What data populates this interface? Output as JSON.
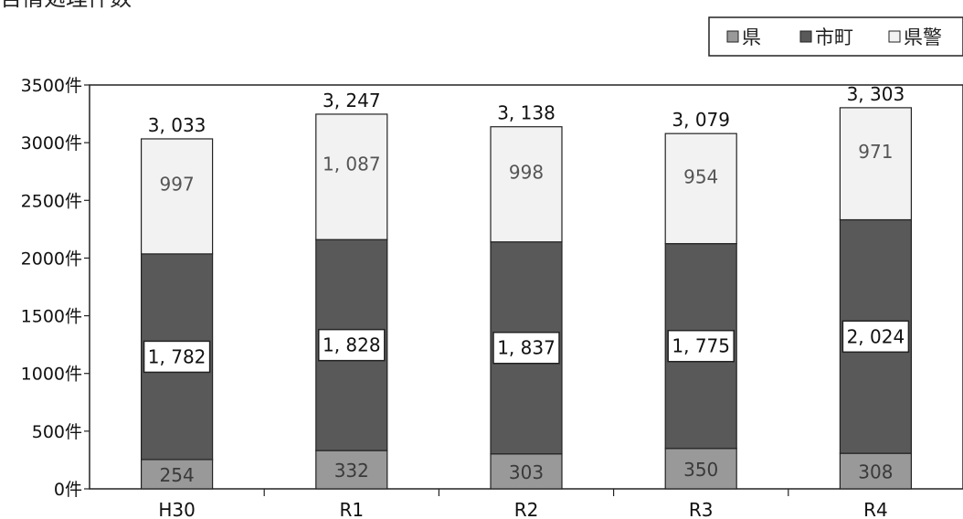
{
  "chart_data": {
    "type": "bar",
    "stacked": true,
    "title": "苦情処理件数",
    "categories": [
      "H30",
      "R1",
      "R2",
      "R3",
      "R4"
    ],
    "series": [
      {
        "name": "県",
        "values": [
          254,
          332,
          303,
          350,
          308
        ],
        "color": "#999999",
        "value_labels": [
          "254",
          "332",
          "303",
          "350",
          "308"
        ]
      },
      {
        "name": "市町",
        "values": [
          1782,
          1828,
          1837,
          1775,
          2024
        ],
        "color": "#595959",
        "value_labels": [
          "1, 782",
          "1, 828",
          "1, 837",
          "1, 775",
          "2, 024"
        ]
      },
      {
        "name": "県警",
        "values": [
          997,
          1087,
          998,
          954,
          971
        ],
        "color": "#f2f2f2",
        "value_labels": [
          "997",
          "1, 087",
          "998",
          "954",
          "971"
        ]
      }
    ],
    "totals": [
      3033,
      3247,
      3138,
      3079,
      3303
    ],
    "total_labels": [
      "3, 033",
      "3, 247",
      "3, 138",
      "3, 079",
      "3, 303"
    ],
    "ylim": [
      0,
      3500
    ],
    "yticks": [
      0,
      500,
      1000,
      1500,
      2000,
      2500,
      3000,
      3500
    ],
    "ytick_labels": [
      "0件",
      "500件",
      "1000件",
      "1500件",
      "2000件",
      "2500件",
      "3000件",
      "3500件"
    ],
    "legend": {
      "position": "top-right",
      "entries": [
        "県",
        "市町",
        "県警"
      ]
    },
    "grid": false
  }
}
